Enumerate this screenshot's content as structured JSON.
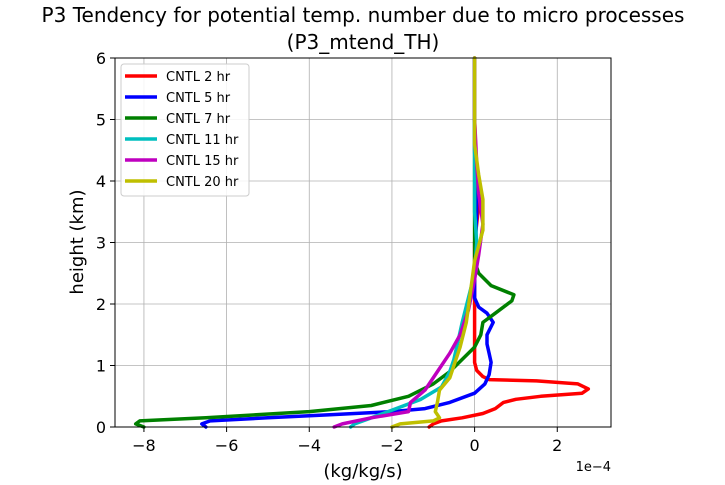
{
  "chart_data": {
    "type": "line",
    "title": "P3 Tendency for potential temp. number due to micro processes",
    "subtitle": "(P3_mtend_TH)",
    "xlabel": "(kg/kg/s)",
    "ylabel": "height (km)",
    "x_scale_label": "1e−4",
    "xlim": [
      -8.7,
      3.3
    ],
    "ylim": [
      0,
      6
    ],
    "xticks": [
      -8,
      -6,
      -4,
      -2,
      0,
      2
    ],
    "xtick_labels": [
      "−8",
      "−6",
      "−4",
      "−2",
      "0",
      "2"
    ],
    "yticks": [
      0,
      1,
      2,
      3,
      4,
      5,
      6
    ],
    "ytick_labels": [
      "0",
      "1",
      "2",
      "3",
      "4",
      "5",
      "6"
    ],
    "grid": true,
    "legend_position": "upper-left",
    "series": [
      {
        "name": "CNTL 2 hr",
        "color": "#ff0000",
        "points": [
          [
            -1.1,
            0
          ],
          [
            -1.0,
            0.05
          ],
          [
            -0.8,
            0.1
          ],
          [
            -0.3,
            0.15
          ],
          [
            0.2,
            0.22
          ],
          [
            0.5,
            0.3
          ],
          [
            0.7,
            0.4
          ],
          [
            1.0,
            0.45
          ],
          [
            1.6,
            0.5
          ],
          [
            2.6,
            0.55
          ],
          [
            2.75,
            0.62
          ],
          [
            2.5,
            0.7
          ],
          [
            1.5,
            0.75
          ],
          [
            0.35,
            0.77
          ],
          [
            0.2,
            0.82
          ],
          [
            0.05,
            0.92
          ],
          [
            0.0,
            1.05
          ],
          [
            0.0,
            1.5
          ],
          [
            0.0,
            2.0
          ],
          [
            0.0,
            2.5
          ],
          [
            0.0,
            3.0
          ],
          [
            0.1,
            3.6
          ],
          [
            0.05,
            4.0
          ],
          [
            0.0,
            5.0
          ],
          [
            0.0,
            6.0
          ]
        ]
      },
      {
        "name": "CNTL 5 hr",
        "color": "#0000ff",
        "points": [
          [
            -6.5,
            0
          ],
          [
            -6.6,
            0.05
          ],
          [
            -6.4,
            0.1
          ],
          [
            -5.0,
            0.15
          ],
          [
            -3.5,
            0.2
          ],
          [
            -2.0,
            0.25
          ],
          [
            -1.2,
            0.3
          ],
          [
            -0.6,
            0.4
          ],
          [
            0.0,
            0.55
          ],
          [
            0.25,
            0.7
          ],
          [
            0.35,
            0.85
          ],
          [
            0.4,
            1.05
          ],
          [
            0.35,
            1.2
          ],
          [
            0.3,
            1.35
          ],
          [
            0.3,
            1.5
          ],
          [
            0.45,
            1.7
          ],
          [
            0.3,
            1.85
          ],
          [
            0.1,
            1.95
          ],
          [
            0.0,
            2.1
          ],
          [
            0.0,
            2.6
          ],
          [
            0.05,
            3.5
          ],
          [
            0.0,
            4.5
          ],
          [
            0.0,
            6.0
          ]
        ]
      },
      {
        "name": "CNTL 7 hr",
        "color": "#008000",
        "points": [
          [
            -8.0,
            0
          ],
          [
            -8.2,
            0.05
          ],
          [
            -8.1,
            0.1
          ],
          [
            -6.5,
            0.15
          ],
          [
            -4.0,
            0.25
          ],
          [
            -2.5,
            0.35
          ],
          [
            -1.6,
            0.5
          ],
          [
            -1.0,
            0.7
          ],
          [
            -0.6,
            0.9
          ],
          [
            -0.3,
            1.1
          ],
          [
            0.0,
            1.3
          ],
          [
            0.15,
            1.5
          ],
          [
            0.2,
            1.7
          ],
          [
            0.5,
            1.85
          ],
          [
            0.9,
            2.05
          ],
          [
            0.95,
            2.15
          ],
          [
            0.4,
            2.3
          ],
          [
            0.1,
            2.5
          ],
          [
            0.0,
            2.7
          ],
          [
            0.0,
            3.5
          ],
          [
            0.0,
            4.0
          ],
          [
            0.0,
            6.0
          ]
        ]
      },
      {
        "name": "CNTL 11 hr",
        "color": "#00bfbf",
        "points": [
          [
            -3.0,
            0
          ],
          [
            -2.9,
            0.05
          ],
          [
            -2.5,
            0.15
          ],
          [
            -1.9,
            0.3
          ],
          [
            -1.3,
            0.45
          ],
          [
            -0.8,
            0.65
          ],
          [
            -0.6,
            0.9
          ],
          [
            -0.5,
            1.1
          ],
          [
            -0.4,
            1.4
          ],
          [
            -0.3,
            1.7
          ],
          [
            -0.15,
            2.1
          ],
          [
            0.0,
            2.5
          ],
          [
            0.05,
            3.0
          ],
          [
            0.0,
            3.5
          ],
          [
            0.0,
            4.0
          ],
          [
            0.0,
            6.0
          ]
        ]
      },
      {
        "name": "CNTL 15 hr",
        "color": "#bf00bf",
        "points": [
          [
            -3.4,
            0
          ],
          [
            -3.2,
            0.05
          ],
          [
            -2.5,
            0.15
          ],
          [
            -1.6,
            0.25
          ],
          [
            -1.55,
            0.4
          ],
          [
            -1.2,
            0.6
          ],
          [
            -0.9,
            0.9
          ],
          [
            -0.6,
            1.2
          ],
          [
            -0.35,
            1.5
          ],
          [
            -0.15,
            1.9
          ],
          [
            0.0,
            2.4
          ],
          [
            0.1,
            2.8
          ],
          [
            0.2,
            3.3
          ],
          [
            0.1,
            3.8
          ],
          [
            0.05,
            4.3
          ],
          [
            0.0,
            5.0
          ],
          [
            0.0,
            6.0
          ]
        ]
      },
      {
        "name": "CNTL 20 hr",
        "color": "#bfbf00",
        "points": [
          [
            -2.0,
            0
          ],
          [
            -1.8,
            0.05
          ],
          [
            -1.0,
            0.1
          ],
          [
            -0.85,
            0.15
          ],
          [
            -0.95,
            0.25
          ],
          [
            -0.9,
            0.4
          ],
          [
            -0.85,
            0.6
          ],
          [
            -0.6,
            0.8
          ],
          [
            -0.5,
            1.0
          ],
          [
            -0.35,
            1.3
          ],
          [
            -0.2,
            1.7
          ],
          [
            -0.1,
            2.2
          ],
          [
            0.0,
            2.7
          ],
          [
            0.2,
            3.2
          ],
          [
            0.2,
            3.7
          ],
          [
            0.1,
            4.1
          ],
          [
            0.0,
            4.6
          ],
          [
            0.0,
            5.5
          ],
          [
            0.0,
            6.0
          ]
        ]
      }
    ]
  }
}
